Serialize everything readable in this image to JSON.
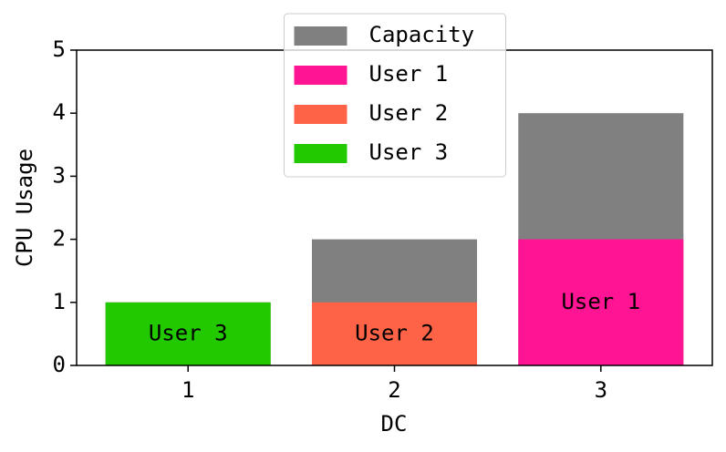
{
  "chart_data": {
    "type": "bar",
    "x_label": "DC",
    "y_label": "CPU Usage",
    "x": [
      1,
      2,
      3
    ],
    "series": [
      {
        "name": "Capacity",
        "color": "#808080",
        "values": [
          1,
          2,
          4
        ]
      },
      {
        "name": "User 1",
        "color": "#ff1493",
        "values": [
          null,
          null,
          2
        ]
      },
      {
        "name": "User 2",
        "color": "#ff6347",
        "values": [
          null,
          1,
          null
        ]
      },
      {
        "name": "User 3",
        "color": "#22c800",
        "values": [
          1,
          null,
          null
        ]
      }
    ],
    "xlim": [
      0.46,
      3.54
    ],
    "xticks": [
      1,
      2,
      3
    ],
    "ylim": [
      0,
      5
    ],
    "yticks": [
      0,
      1,
      2,
      3,
      4,
      5
    ],
    "legend": "upper center"
  }
}
